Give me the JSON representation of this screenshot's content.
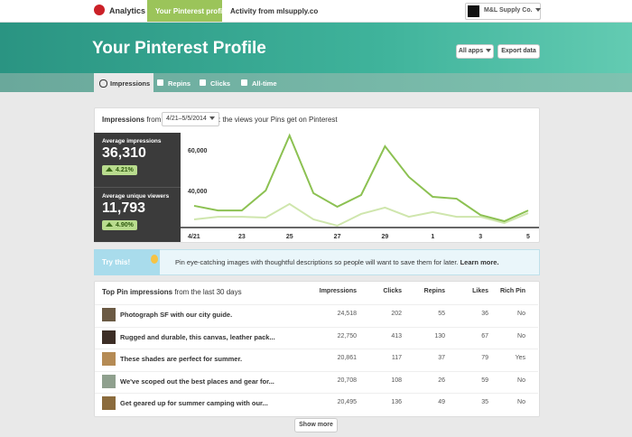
{
  "nav": {
    "brand": "Analytics",
    "tabs": [
      "Your Pinterest profile",
      "Activity from mlsupply.co"
    ],
    "account": "M&L Supply Co."
  },
  "header": {
    "title": "Your Pinterest Profile",
    "buttons": [
      "All apps",
      "Export data"
    ]
  },
  "subnav": {
    "tabs": [
      "Impressions",
      "Repins",
      "Clicks",
      "All-time"
    ]
  },
  "impressions_card": {
    "title": "Impressions",
    "from": "from",
    "date_range": "4/21–5/5/2014",
    "description": ": the views your Pins get on Pinterest",
    "stats": [
      {
        "label": "Average impressions",
        "value": "36,310",
        "change": "4.21%"
      },
      {
        "label": "Average unique viewers",
        "value": "11,793",
        "change": "4.90%"
      }
    ]
  },
  "chart_data": {
    "type": "line",
    "categories": [
      "4/21",
      null,
      "23",
      null,
      "25",
      null,
      "27",
      null,
      "29",
      null,
      "1",
      null,
      "3",
      null,
      "5"
    ],
    "series": [
      {
        "color": "#8cc152",
        "values": [
          34700,
          32400,
          32400,
          42200,
          69300,
          40900,
          34200,
          40000,
          64000,
          48900,
          39100,
          38200,
          30200,
          27100,
          32400
        ]
      },
      {
        "color": "#cfe6ad",
        "values": [
          28000,
          29300,
          29300,
          28900,
          35600,
          28000,
          24900,
          30700,
          33800,
          29300,
          31600,
          29300,
          29300,
          26200,
          31100
        ]
      }
    ],
    "ylim": [
      24000,
      70000
    ],
    "yticks": [
      {
        "value": 40000,
        "label": "40,000"
      },
      {
        "value": 60000,
        "label": "60,000"
      }
    ],
    "grid": false
  },
  "tip": {
    "label": "Try this!",
    "text": "Pin eye-catching images with thoughtful descriptions so people will want to save them for later.",
    "link": "Learn more."
  },
  "top_pins": {
    "title": "Top Pin impressions",
    "subtitle": "from the last 30 days",
    "columns": [
      "Impressions",
      "Clicks",
      "Repins",
      "Likes",
      "Rich Pin"
    ],
    "rows": [
      [
        "Photograph SF with our city guide.",
        "24,518",
        "202",
        "55",
        "36",
        "No"
      ],
      [
        "Rugged and durable, this canvas, leather pack...",
        "22,750",
        "413",
        "130",
        "67",
        "No"
      ],
      [
        "These shades are perfect for summer.",
        "20,861",
        "117",
        "37",
        "79",
        "Yes"
      ],
      [
        "We've scoped out the best places and gear for...",
        "20,708",
        "108",
        "26",
        "59",
        "No"
      ],
      [
        "Get geared up for summer camping with our...",
        "20,495",
        "136",
        "49",
        "35",
        "No"
      ]
    ],
    "show_more": "Show more"
  }
}
